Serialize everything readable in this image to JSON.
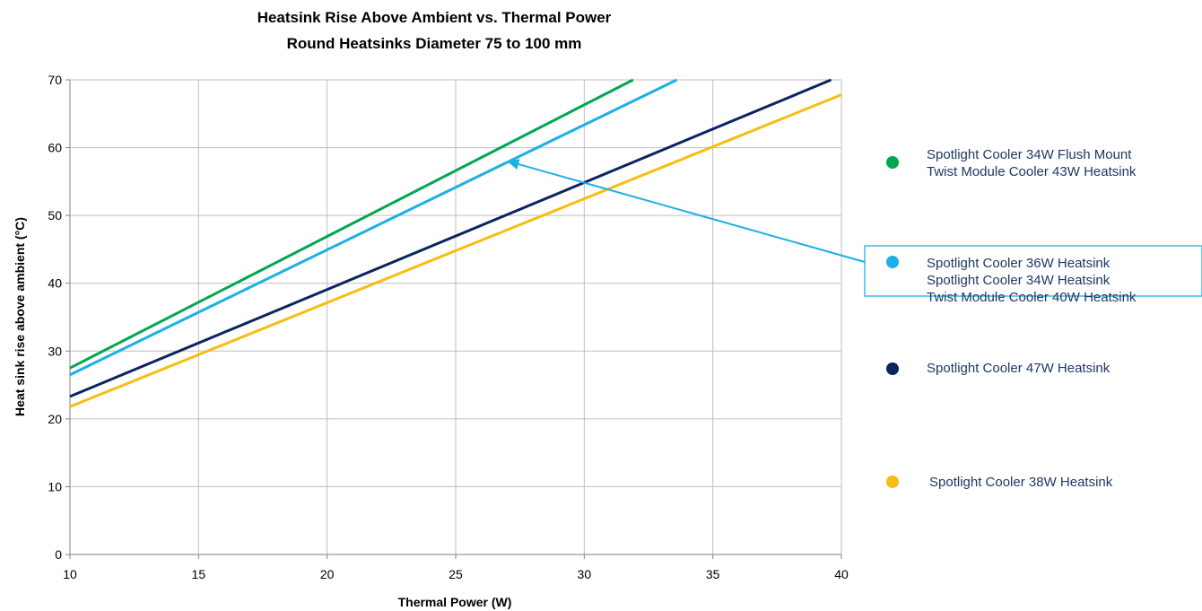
{
  "chart_data": {
    "type": "line",
    "title": "Heatsink Rise Above Ambient vs. Thermal Power",
    "subtitle": "Round Heatsinks Diameter 75 to 100 mm",
    "xlabel": "Thermal Power (W)",
    "ylabel": "Heat sink rise above ambient (°C)",
    "xlim": [
      10,
      40
    ],
    "ylim": [
      0,
      70
    ],
    "xticks": [
      10,
      15,
      20,
      25,
      30,
      35,
      40
    ],
    "yticks": [
      0,
      10,
      20,
      30,
      40,
      50,
      60,
      70
    ],
    "grid": true,
    "legend_position": "right",
    "series": [
      {
        "name": "Spotlight Cooler 34W Flush Mount / Twist Module Cooler 43W Heatsink",
        "color": "#00a651",
        "x": [
          10,
          31.9
        ],
        "y": [
          27.5,
          70
        ]
      },
      {
        "name": "Spotlight Cooler 36W Heatsink / Spotlight Cooler 34W Heatsink / Twist Module Cooler 40W Heatsink",
        "color": "#1cb0e6",
        "x": [
          10,
          33.6
        ],
        "y": [
          26.5,
          70
        ]
      },
      {
        "name": "Spotlight Cooler 47W Heatsink",
        "color": "#0b2560",
        "x": [
          10,
          39.6
        ],
        "y": [
          23.3,
          70
        ]
      },
      {
        "name": "Spotlight Cooler 38W Heatsink",
        "color": "#f9bc12",
        "x": [
          10,
          40
        ],
        "y": [
          21.8,
          67.8
        ]
      }
    ],
    "legend": [
      {
        "color": "#00a651",
        "lines": [
          "Spotlight Cooler 34W Flush Mount",
          "Twist Module Cooler 43W Heatsink"
        ],
        "boxed": false
      },
      {
        "color": "#1cb0e6",
        "lines": [
          "Spotlight Cooler 36W Heatsink",
          "Spotlight Cooler 34W Heatsink",
          "Twist Module Cooler 40W Heatsink"
        ],
        "boxed": true
      },
      {
        "color": "#0b2560",
        "lines": [
          "Spotlight Cooler 47W Heatsink"
        ],
        "boxed": false
      },
      {
        "color": "#f9bc12",
        "lines": [
          "Spotlight Cooler 38W Heatsink"
        ],
        "boxed": false
      }
    ],
    "annotation": {
      "type": "arrow",
      "color": "#1cb0e6",
      "from_legend_item": 1,
      "to": {
        "x": 27,
        "y": 58
      }
    }
  }
}
